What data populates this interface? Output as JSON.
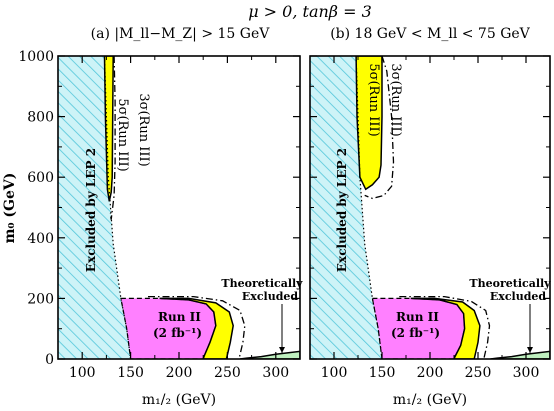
{
  "figure": {
    "title": "μ > 0, tanβ = 3",
    "ylabel": "m₀ (GeV)",
    "xlabel": "m₁/₂ (GeV)"
  },
  "colors": {
    "lep_fill": "#cdf3f7",
    "lep_hatch": "#52c6da",
    "run3_5sigma": "#ffff00",
    "run2": "#ff80ff",
    "theory": "#bff0bf"
  },
  "chart_data": [
    {
      "type": "area",
      "title": "(a) |M_ll−M_Z| > 15 GeV",
      "xlabel": "m₁/₂ (GeV)",
      "ylabel": "m₀ (GeV)",
      "xlim": [
        75,
        325
      ],
      "ylim": [
        0,
        1000
      ],
      "xticks": [
        100,
        150,
        200,
        250,
        300
      ],
      "yticks": [
        0,
        200,
        400,
        600,
        800,
        1000
      ],
      "grid": false,
      "regions": [
        {
          "name": "Excluded by LEP 2",
          "style": "hatch",
          "polygon": [
            [
              75,
              0
            ],
            [
              75,
              1000
            ],
            [
              123,
              1000
            ],
            [
              127,
              600
            ],
            [
              132,
              380
            ],
            [
              140,
              200
            ],
            [
              146,
              100
            ],
            [
              150,
              0
            ]
          ]
        },
        {
          "name": "5σ(Run III)",
          "style": "fill-yellow",
          "polygon": [
            [
              123,
              1000
            ],
            [
              132,
              1000
            ],
            [
              131.5,
              800
            ],
            [
              131,
              600
            ],
            [
              130,
              550
            ],
            [
              128,
              520
            ],
            [
              126,
              560
            ],
            [
              124,
              800
            ]
          ]
        },
        {
          "name": "Run II (2 fb⁻¹)",
          "style": "fill-magenta",
          "polygon": [
            [
              140,
              200
            ],
            [
              180,
              200
            ],
            [
              210,
              195
            ],
            [
              228,
              182
            ],
            [
              236,
              155
            ],
            [
              238,
              110
            ],
            [
              232,
              55
            ],
            [
              226,
              10
            ],
            [
              225,
              0
            ],
            [
              150,
              0
            ],
            [
              146,
              100
            ]
          ]
        },
        {
          "name": "Run III 5σ (low m₀)",
          "style": "fill-yellow",
          "polygon": [
            [
              180,
              200
            ],
            [
              210,
              200
            ],
            [
              238,
              185
            ],
            [
              252,
              155
            ],
            [
              256,
              110
            ],
            [
              253,
              55
            ],
            [
              249,
              0
            ],
            [
              225,
              0
            ],
            [
              226,
              10
            ],
            [
              232,
              55
            ],
            [
              238,
              110
            ],
            [
              236,
              155
            ],
            [
              228,
              182
            ],
            [
              210,
              195
            ]
          ]
        },
        {
          "name": "Theoretically Excluded",
          "style": "fill-green",
          "polygon": [
            [
              263,
              0
            ],
            [
              325,
              0
            ],
            [
              325,
              25
            ],
            [
              300,
              16
            ],
            [
              285,
              8
            ],
            [
              270,
              3
            ]
          ]
        }
      ],
      "contours": [
        {
          "name": "3σ(Run III)",
          "style": "dashdot",
          "points": [
            [
              133,
              1000
            ],
            [
              134,
              850
            ],
            [
              134,
              650
            ],
            [
              133,
              540
            ],
            [
              130,
              460
            ],
            [
              129,
              480
            ]
          ]
        },
        {
          "name": "3σ(Run III) low",
          "style": "dashdot",
          "points": [
            [
              168,
              206
            ],
            [
              215,
              206
            ],
            [
              245,
              192
            ],
            [
              263,
              160
            ],
            [
              268,
              110
            ],
            [
              266,
              55
            ],
            [
              262,
              0
            ]
          ]
        }
      ],
      "annotations": [
        {
          "text": "Excluded by LEP 2"
        },
        {
          "text": "5σ(Run III)"
        },
        {
          "text": "3σ(Run III)"
        },
        {
          "text": "Run II"
        },
        {
          "text": "(2 fb⁻¹)"
        },
        {
          "text": "Theoretically"
        },
        {
          "text": "Excluded"
        }
      ]
    },
    {
      "type": "area",
      "title": "(b) 18 GeV < M_ll < 75 GeV",
      "xlabel": "m₁/₂ (GeV)",
      "ylabel": "m₀ (GeV)",
      "xlim": [
        75,
        325
      ],
      "ylim": [
        0,
        1000
      ],
      "xticks": [
        100,
        150,
        200,
        250,
        300
      ],
      "yticks": [
        0,
        200,
        400,
        600,
        800,
        1000
      ],
      "grid": false,
      "regions": [
        {
          "name": "Excluded by LEP 2",
          "style": "hatch",
          "polygon": [
            [
              75,
              0
            ],
            [
              75,
              1000
            ],
            [
              123,
              1000
            ],
            [
              127,
              600
            ],
            [
              132,
              380
            ],
            [
              140,
              200
            ],
            [
              146,
              100
            ],
            [
              150,
              0
            ]
          ]
        },
        {
          "name": "5σ(Run III)",
          "style": "fill-yellow",
          "polygon": [
            [
              123,
              1000
            ],
            [
              150,
              1000
            ],
            [
              150,
              800
            ],
            [
              149,
              640
            ],
            [
              147,
              600
            ],
            [
              140,
              575
            ],
            [
              133,
              560
            ],
            [
              127,
              600
            ],
            [
              124,
              800
            ]
          ]
        },
        {
          "name": "Run II (2 fb⁻¹)",
          "style": "fill-magenta",
          "polygon": [
            [
              140,
              200
            ],
            [
              180,
              200
            ],
            [
              210,
              195
            ],
            [
              228,
              180
            ],
            [
              235,
              150
            ],
            [
              236,
              100
            ],
            [
              232,
              45
            ],
            [
              226,
              8
            ],
            [
              225,
              0
            ],
            [
              150,
              0
            ],
            [
              146,
              100
            ]
          ]
        },
        {
          "name": "Run III 5σ (low m₀)",
          "style": "fill-yellow",
          "polygon": [
            [
              180,
              200
            ],
            [
              205,
              200
            ],
            [
              234,
              188
            ],
            [
              246,
              160
            ],
            [
              252,
              110
            ],
            [
              250,
              55
            ],
            [
              246,
              0
            ],
            [
              225,
              0
            ],
            [
              226,
              8
            ],
            [
              232,
              45
            ],
            [
              236,
              100
            ],
            [
              235,
              150
            ],
            [
              228,
              180
            ],
            [
              210,
              195
            ]
          ]
        },
        {
          "name": "Theoretically Excluded",
          "style": "fill-green",
          "polygon": [
            [
              263,
              0
            ],
            [
              325,
              0
            ],
            [
              325,
              25
            ],
            [
              300,
              16
            ],
            [
              285,
              8
            ],
            [
              270,
              3
            ]
          ]
        }
      ],
      "contours": [
        {
          "name": "3σ(Run III)",
          "style": "dashdot",
          "points": [
            [
              150,
              1000
            ],
            [
              155,
              950
            ],
            [
              160,
              800
            ],
            [
              162,
              650
            ],
            [
              160,
              570
            ],
            [
              152,
              540
            ],
            [
              140,
              530
            ],
            [
              132,
              540
            ]
          ]
        },
        {
          "name": "3σ(Run III) low",
          "style": "dashdot",
          "points": [
            [
              168,
              206
            ],
            [
              215,
              206
            ],
            [
              243,
              190
            ],
            [
              258,
              160
            ],
            [
              262,
              110
            ],
            [
              260,
              55
            ],
            [
              256,
              0
            ]
          ]
        }
      ],
      "annotations": [
        {
          "text": "Excluded by LEP 2"
        },
        {
          "text": "5σ(Run III)"
        },
        {
          "text": "3σ(Run III)"
        },
        {
          "text": "Run II"
        },
        {
          "text": "(2 fb⁻¹)"
        },
        {
          "text": "Theoretically"
        },
        {
          "text": "Excluded"
        }
      ]
    }
  ]
}
